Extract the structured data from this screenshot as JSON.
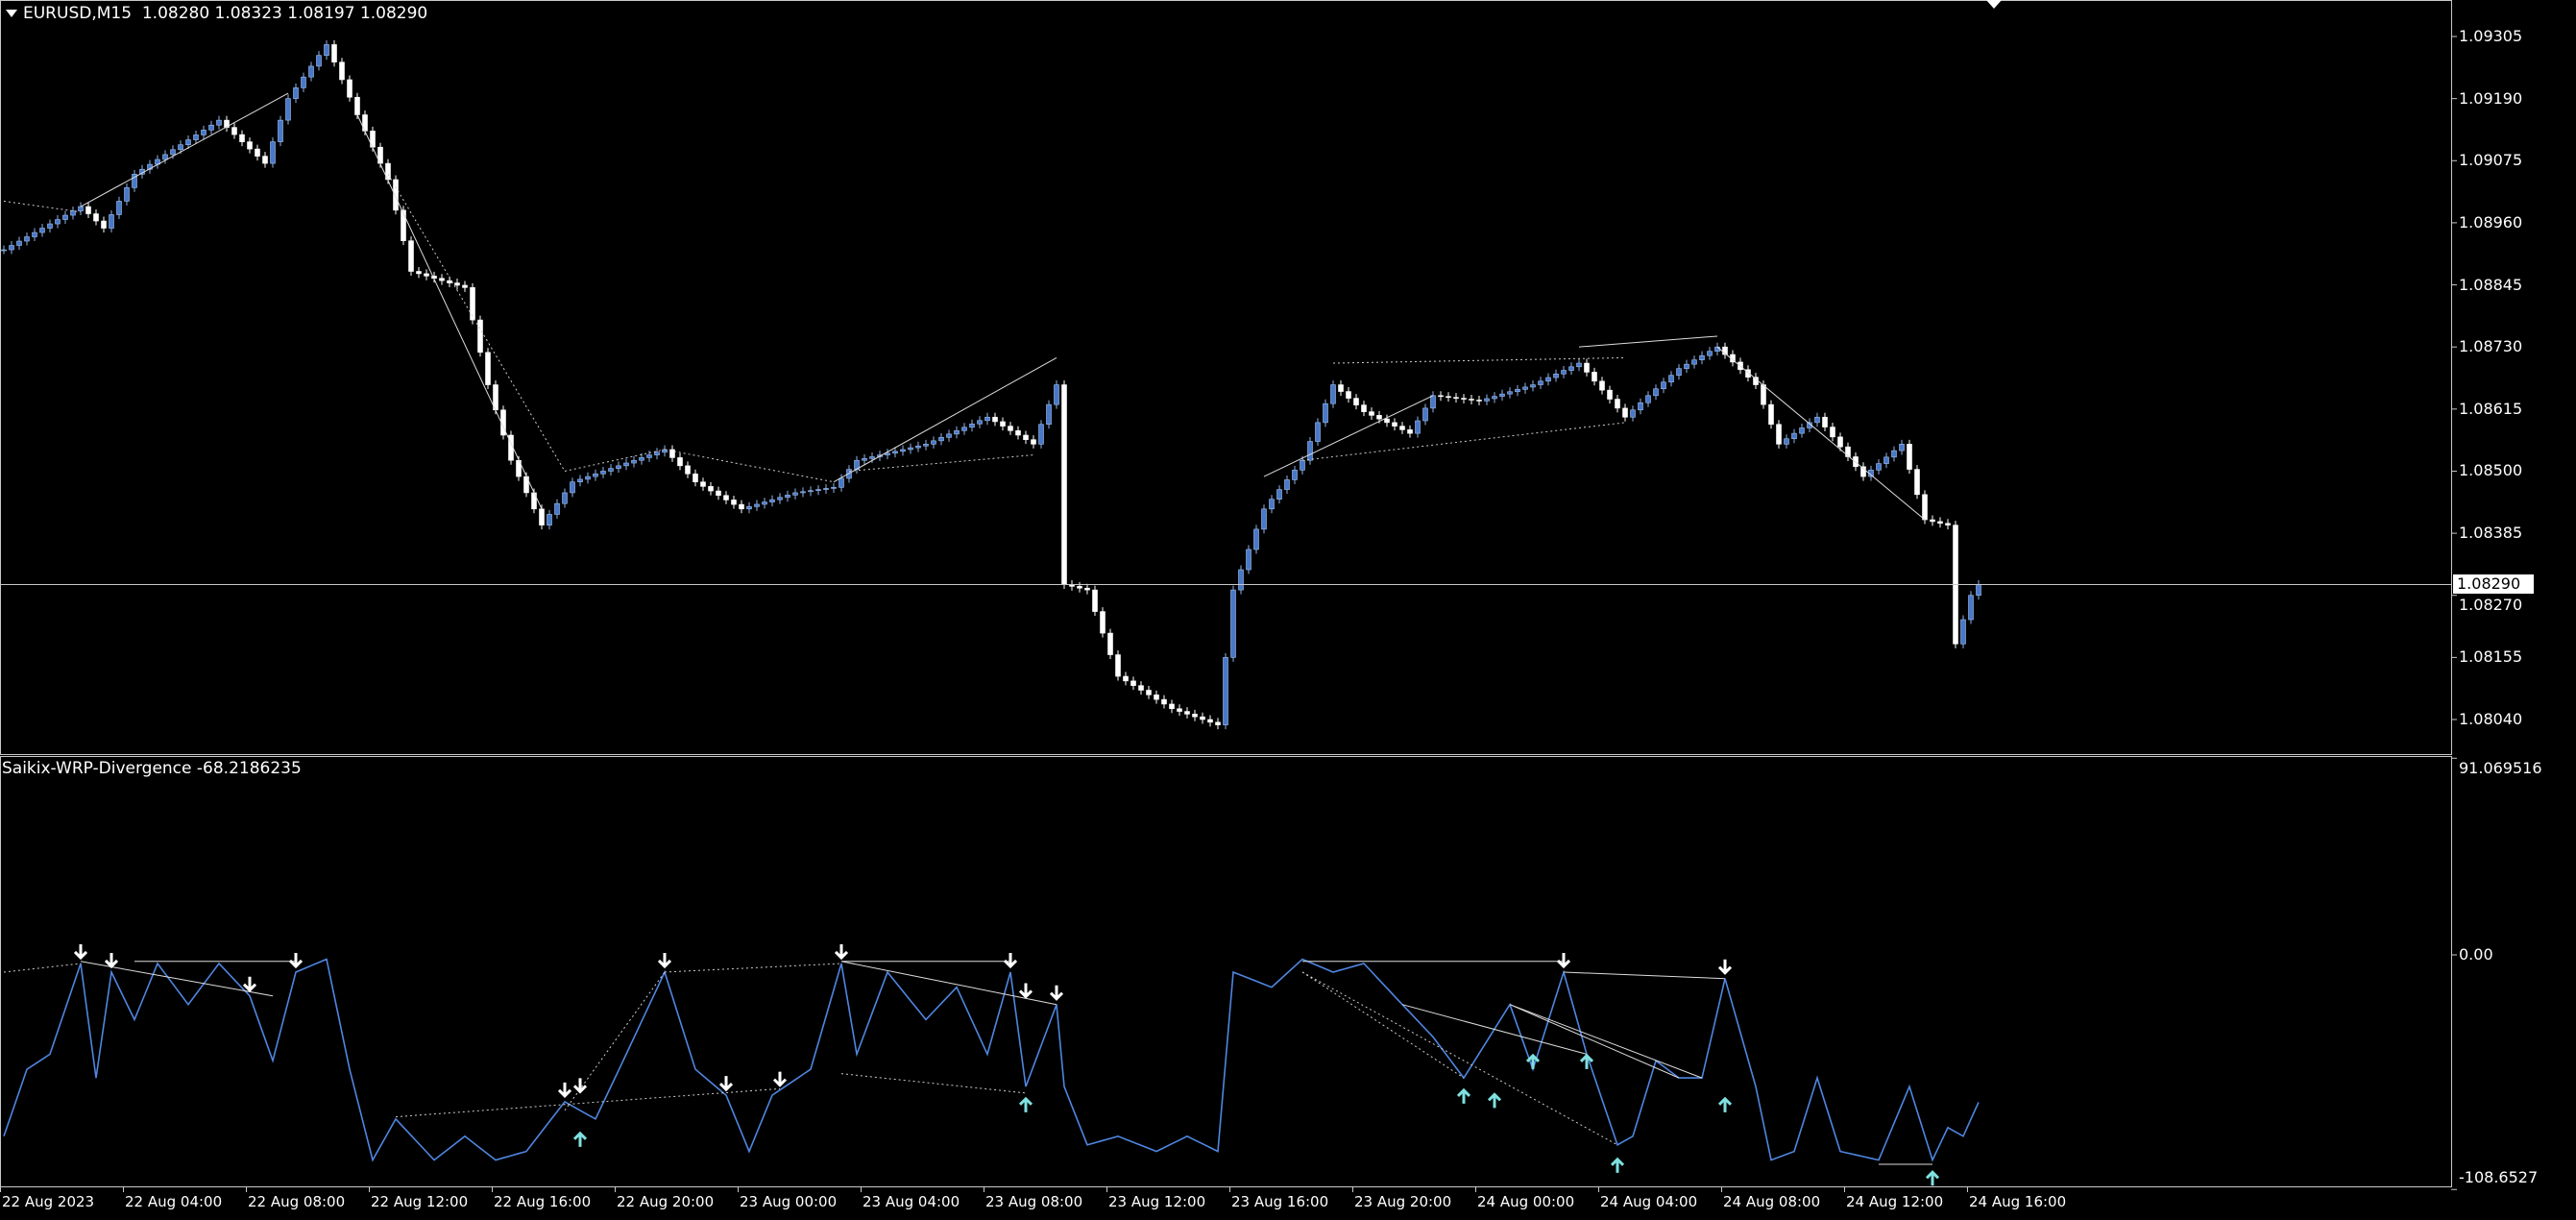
{
  "header": {
    "symbol": "EURUSD,M15",
    "ohlc": "1.08280 1.08323 1.08197 1.08290"
  },
  "indicator": {
    "name": "Saikix-WRP-Divergence",
    "value": "-68.2186235"
  },
  "colors": {
    "background": "#000000",
    "bull": "#4a78c8",
    "bear": "#ffffff",
    "indicator_line": "#4f86e0",
    "arrow_up": "#7fe0e0",
    "arrow_down": "#ffffff",
    "grid": "#c8c8c8"
  },
  "chart_data": [
    {
      "type": "candlestick",
      "timeframe": "M15",
      "yaxis_ticks": [
        "1.09305",
        "1.09190",
        "1.09075",
        "1.08960",
        "1.08845",
        "1.08730",
        "1.08615",
        "1.08500",
        "1.08385",
        "1.08270",
        "1.08155",
        "1.08040"
      ],
      "ylim": [
        1.0799,
        1.0936
      ],
      "current_price": "1.08290",
      "close_waypoints": [
        [
          0,
          1.0891
        ],
        [
          10,
          1.0899
        ],
        [
          13,
          1.0895
        ],
        [
          17,
          1.0905
        ],
        [
          28,
          1.0915
        ],
        [
          34,
          1.0907
        ],
        [
          37,
          1.0919
        ],
        [
          42,
          1.0929
        ],
        [
          46,
          1.0916
        ],
        [
          50,
          1.0904
        ],
        [
          53,
          1.0887
        ],
        [
          60,
          1.0884
        ],
        [
          63,
          1.0866
        ],
        [
          66,
          1.0852
        ],
        [
          70,
          1.084
        ],
        [
          74,
          1.0848
        ],
        [
          80,
          1.0851
        ],
        [
          86,
          1.0854
        ],
        [
          90,
          1.0848
        ],
        [
          96,
          1.0843
        ],
        [
          103,
          1.0846
        ],
        [
          108,
          1.0847
        ],
        [
          111,
          1.0852
        ],
        [
          120,
          1.0855
        ],
        [
          128,
          1.086
        ],
        [
          134,
          1.0855
        ],
        [
          137,
          1.0866
        ],
        [
          138,
          1.0829
        ],
        [
          141,
          1.0828
        ],
        [
          145,
          1.0812
        ],
        [
          152,
          1.0806
        ],
        [
          158,
          1.0803
        ],
        [
          160,
          1.0828
        ],
        [
          164,
          1.0843
        ],
        [
          169,
          1.0852
        ],
        [
          173,
          1.0866
        ],
        [
          177,
          1.0861
        ],
        [
          183,
          1.0857
        ],
        [
          186,
          1.0864
        ],
        [
          192,
          1.0863
        ],
        [
          199,
          1.0866
        ],
        [
          205,
          1.087
        ],
        [
          211,
          1.086
        ],
        [
          214,
          1.0864
        ],
        [
          218,
          1.0869
        ],
        [
          223,
          1.0873
        ],
        [
          228,
          1.0866
        ],
        [
          231,
          1.0855
        ],
        [
          236,
          1.086
        ],
        [
          242,
          1.0849
        ],
        [
          247,
          1.0855
        ],
        [
          250,
          1.0841
        ],
        [
          253,
          1.084
        ],
        [
          254,
          1.0818
        ],
        [
          256,
          1.0827
        ],
        [
          257,
          1.0829
        ]
      ],
      "solid_lines": [
        [
          [
            10,
            1.0899
          ],
          [
            37,
            1.092
          ]
        ],
        [
          [
            46,
            1.0916
          ],
          [
            70,
            1.0843
          ]
        ],
        [
          [
            108,
            1.0848
          ],
          [
            137,
            1.0871
          ]
        ],
        [
          [
            164,
            1.0849
          ],
          [
            186,
            1.0864
          ]
        ],
        [
          [
            205,
            1.0873
          ],
          [
            223,
            1.0875
          ]
        ],
        [
          [
            223,
            1.0873
          ],
          [
            250,
            1.0841
          ]
        ]
      ],
      "dotted_lines": [
        [
          [
            0,
            1.09
          ],
          [
            10,
            1.0898
          ]
        ],
        [
          [
            50,
            1.0905
          ],
          [
            73,
            1.085
          ]
        ],
        [
          [
            73,
            1.085
          ],
          [
            86,
            1.0854
          ]
        ],
        [
          [
            86,
            1.0854
          ],
          [
            108,
            1.0848
          ]
        ],
        [
          [
            110,
            1.085
          ],
          [
            134,
            1.0853
          ]
        ],
        [
          [
            173,
            1.087
          ],
          [
            211,
            1.0871
          ]
        ],
        [
          [
            169,
            1.0852
          ],
          [
            211,
            1.0859
          ]
        ]
      ]
    },
    {
      "type": "line",
      "name": "Saikix-WRP-Divergence",
      "yaxis_ticks": [
        "91.069516",
        "0.00",
        "-108.6527"
      ],
      "ylim": [
        -108.6527,
        91.069516
      ],
      "values_waypoints": [
        [
          0,
          -84
        ],
        [
          3,
          -53
        ],
        [
          6,
          -46
        ],
        [
          10,
          -4
        ],
        [
          12,
          -57
        ],
        [
          14,
          -8
        ],
        [
          17,
          -30
        ],
        [
          20,
          -4
        ],
        [
          24,
          -23
        ],
        [
          28,
          -4
        ],
        [
          32,
          -19
        ],
        [
          35,
          -49
        ],
        [
          38,
          -8
        ],
        [
          42,
          -2
        ],
        [
          45,
          -53
        ],
        [
          48,
          -95
        ],
        [
          51,
          -76
        ],
        [
          56,
          -95
        ],
        [
          60,
          -84
        ],
        [
          64,
          -95
        ],
        [
          68,
          -91
        ],
        [
          73,
          -68
        ],
        [
          77,
          -76
        ],
        [
          81,
          -46
        ],
        [
          86,
          -8
        ],
        [
          90,
          -53
        ],
        [
          94,
          -65
        ],
        [
          97,
          -91
        ],
        [
          100,
          -65
        ],
        [
          105,
          -53
        ],
        [
          109,
          -4
        ],
        [
          111,
          -46
        ],
        [
          115,
          -8
        ],
        [
          120,
          -30
        ],
        [
          124,
          -15
        ],
        [
          128,
          -46
        ],
        [
          131,
          -8
        ],
        [
          133,
          -61
        ],
        [
          137,
          -23
        ],
        [
          138,
          -61
        ],
        [
          141,
          -88
        ],
        [
          145,
          -84
        ],
        [
          150,
          -91
        ],
        [
          154,
          -84
        ],
        [
          158,
          -91
        ],
        [
          160,
          -8
        ],
        [
          165,
          -15
        ],
        [
          169,
          -2
        ],
        [
          173,
          -8
        ],
        [
          177,
          -4
        ],
        [
          182,
          -23
        ],
        [
          186,
          -38
        ],
        [
          190,
          -57
        ],
        [
          196,
          -23
        ],
        [
          199,
          -53
        ],
        [
          203,
          -8
        ],
        [
          206,
          -46
        ],
        [
          210,
          -88
        ],
        [
          212,
          -84
        ],
        [
          215,
          -49
        ],
        [
          218,
          -57
        ],
        [
          221,
          -57
        ],
        [
          224,
          -11
        ],
        [
          228,
          -61
        ],
        [
          230,
          -95
        ],
        [
          233,
          -91
        ],
        [
          236,
          -57
        ],
        [
          239,
          -91
        ],
        [
          244,
          -95
        ],
        [
          248,
          -61
        ],
        [
          251,
          -95
        ],
        [
          253,
          -80
        ],
        [
          255,
          -84
        ],
        [
          257,
          -68.2186235
        ]
      ],
      "down_arrows": [
        [
          10,
          -4
        ],
        [
          14,
          -8
        ],
        [
          32,
          -19
        ],
        [
          38,
          -8
        ],
        [
          73,
          -68
        ],
        [
          75,
          -66
        ],
        [
          86,
          -8
        ],
        [
          94,
          -65
        ],
        [
          101,
          -63
        ],
        [
          109,
          -4
        ],
        [
          131,
          -8
        ],
        [
          133,
          -22
        ],
        [
          137,
          -23
        ],
        [
          203,
          -8
        ],
        [
          224,
          -11
        ]
      ],
      "up_arrows": [
        [
          75,
          -80
        ],
        [
          133,
          -64
        ],
        [
          190,
          -60
        ],
        [
          194,
          -62
        ],
        [
          199,
          -44
        ],
        [
          206,
          -44
        ],
        [
          210,
          -92
        ],
        [
          224,
          -64
        ],
        [
          251,
          -98
        ]
      ],
      "solid_lines": [
        [
          [
            10,
            -3
          ],
          [
            35,
            -19
          ]
        ],
        [
          [
            17,
            -3
          ],
          [
            38,
            -3
          ]
        ],
        [
          [
            109,
            -3
          ],
          [
            131,
            -3
          ]
        ],
        [
          [
            109,
            -3
          ],
          [
            137,
            -23
          ]
        ],
        [
          [
            169,
            -3
          ],
          [
            203,
            -3
          ]
        ],
        [
          [
            203,
            -8
          ],
          [
            224,
            -11
          ]
        ],
        [
          [
            196,
            -23
          ],
          [
            218,
            -57
          ]
        ],
        [
          [
            196,
            -23
          ],
          [
            221,
            -57
          ]
        ],
        [
          [
            182,
            -23
          ],
          [
            206,
            -46
          ]
        ],
        [
          [
            244,
            -97
          ],
          [
            251,
            -97
          ]
        ]
      ],
      "dotted_lines": [
        [
          [
            0,
            -8
          ],
          [
            10,
            -4
          ]
        ],
        [
          [
            86,
            -8
          ],
          [
            109,
            -4
          ]
        ],
        [
          [
            73,
            -72
          ],
          [
            86,
            -8
          ]
        ],
        [
          [
            51,
            -75
          ],
          [
            101,
            -62
          ]
        ],
        [
          [
            109,
            -55
          ],
          [
            133,
            -64
          ]
        ],
        [
          [
            169,
            -8
          ],
          [
            210,
            -88
          ]
        ],
        [
          [
            169,
            -8
          ],
          [
            190,
            -57
          ]
        ]
      ]
    }
  ],
  "time_axis": [
    "22 Aug 2023",
    "22 Aug 04:00",
    "22 Aug 08:00",
    "22 Aug 12:00",
    "22 Aug 16:00",
    "22 Aug 20:00",
    "23 Aug 00:00",
    "23 Aug 04:00",
    "23 Aug 08:00",
    "23 Aug 12:00",
    "23 Aug 16:00",
    "23 Aug 20:00",
    "24 Aug 00:00",
    "24 Aug 04:00",
    "24 Aug 08:00",
    "24 Aug 12:00",
    "24 Aug 16:00"
  ]
}
